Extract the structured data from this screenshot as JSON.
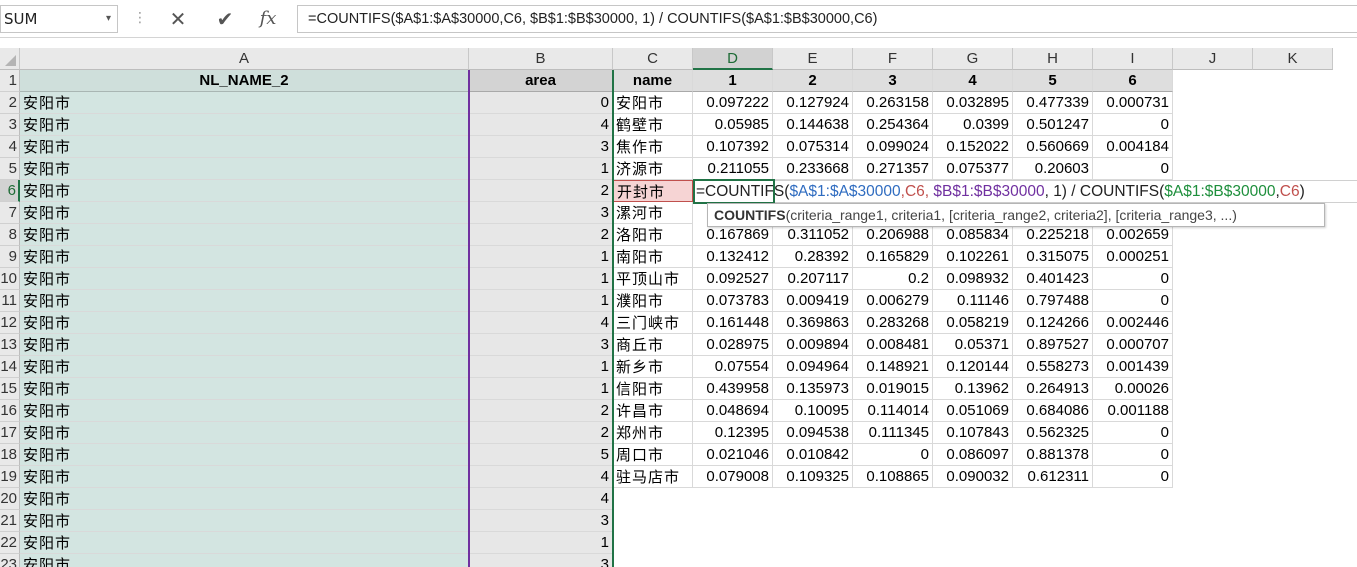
{
  "formula_bar": {
    "name_box": "SUM",
    "name_box_dropdown": "▾",
    "grip": "⋮",
    "cancel_glyph": "✕",
    "enter_glyph": "✔",
    "fx_glyph": "fx",
    "formula": "=COUNTIFS($A$1:$A$30000,C6, $B$1:$B$30000, 1) / COUNTIFS($A$1:$B$30000,C6)"
  },
  "columns": [
    "A",
    "B",
    "C",
    "D",
    "E",
    "F",
    "G",
    "H",
    "I",
    "J",
    "K"
  ],
  "active_column": "D",
  "active_row": "6",
  "row_numbers": [
    "1",
    "2",
    "3",
    "4",
    "5",
    "6",
    "7",
    "8",
    "9",
    "10",
    "11",
    "12",
    "13",
    "14",
    "15",
    "16",
    "17",
    "18",
    "19",
    "20",
    "21",
    "22",
    "23"
  ],
  "headers": {
    "A": "NL_NAME_2",
    "B": "area",
    "C": "name",
    "D": "1",
    "E": "2",
    "F": "3",
    "G": "4",
    "H": "5",
    "I": "6"
  },
  "colA_values": [
    "安阳市",
    "安阳市",
    "安阳市",
    "安阳市",
    "安阳市",
    "安阳市",
    "安阳市",
    "安阳市",
    "安阳市",
    "安阳市",
    "安阳市",
    "安阳市",
    "安阳市",
    "安阳市",
    "安阳市",
    "安阳市",
    "安阳市",
    "安阳市",
    "安阳市",
    "安阳市",
    "安阳市",
    "安阳市"
  ],
  "colB_values": [
    "0",
    "4",
    "3",
    "1",
    "2",
    "3",
    "2",
    "1",
    "1",
    "1",
    "4",
    "3",
    "1",
    "1",
    "2",
    "2",
    "5",
    "4",
    "4",
    "3",
    "1",
    "3"
  ],
  "colC_values": [
    "安阳市",
    "鹤壁市",
    "焦作市",
    "济源市",
    "开封市",
    "漯河市",
    "洛阳市",
    "南阳市",
    "平顶山市",
    "濮阳市",
    "三门峡市",
    "商丘市",
    "新乡市",
    "信阳市",
    "许昌市",
    "郑州市",
    "周口市",
    "驻马店市"
  ],
  "data_rows": [
    [
      "0.097222",
      "0.127924",
      "0.263158",
      "0.032895",
      "0.477339",
      "0.000731"
    ],
    [
      "0.05985",
      "0.144638",
      "0.254364",
      "0.0399",
      "0.501247",
      "0"
    ],
    [
      "0.107392",
      "0.075314",
      "0.099024",
      "0.152022",
      "0.560669",
      "0.004184"
    ],
    [
      "0.211055",
      "0.233668",
      "0.271357",
      "0.075377",
      "0.20603",
      "0"
    ],
    null,
    null,
    [
      "0.167869",
      "0.311052",
      "0.206988",
      "0.085834",
      "0.225218",
      "0.002659"
    ],
    [
      "0.132412",
      "0.28392",
      "0.165829",
      "0.102261",
      "0.315075",
      "0.000251"
    ],
    [
      "0.092527",
      "0.207117",
      "0.2",
      "0.098932",
      "0.401423",
      "0"
    ],
    [
      "0.073783",
      "0.009419",
      "0.006279",
      "0.11146",
      "0.797488",
      "0"
    ],
    [
      "0.161448",
      "0.369863",
      "0.283268",
      "0.058219",
      "0.124266",
      "0.002446"
    ],
    [
      "0.028975",
      "0.009894",
      "0.008481",
      "0.05371",
      "0.897527",
      "0.000707"
    ],
    [
      "0.07554",
      "0.094964",
      "0.148921",
      "0.120144",
      "0.558273",
      "0.001439"
    ],
    [
      "0.439958",
      "0.135973",
      "0.019015",
      "0.13962",
      "0.264913",
      "0.00026"
    ],
    [
      "0.048694",
      "0.10095",
      "0.114014",
      "0.051069",
      "0.684086",
      "0.001188"
    ],
    [
      "0.12395",
      "0.094538",
      "0.111345",
      "0.107843",
      "0.562325",
      "0"
    ],
    [
      "0.021046",
      "0.010842",
      "0",
      "0.086097",
      "0.881378",
      "0"
    ],
    [
      "0.079008",
      "0.109325",
      "0.108865",
      "0.090032",
      "0.612311",
      "0"
    ]
  ],
  "editing": {
    "p1": "=COUNTIFS(",
    "r1": "$A$1:$A$30000",
    "c1": ",",
    "r2": "C6",
    "c2": ", ",
    "r3": "$B$1:$B$30000",
    "p2": ", 1) / COUNTIFS(",
    "r4": "$A$1:$B$30000",
    "c3": ",",
    "r5": "C6",
    "p3": ")"
  },
  "tooltip": {
    "fn": "COUNTIFS",
    "args": "(criteria_range1, criteria1, [criteria_range2, criteria2], [criteria_range3, ...)"
  },
  "colors": {
    "accent_green": "#217346",
    "ref_blue": "#2f6cc0",
    "ref_red": "#c0504d",
    "ref_purple": "#7030a0",
    "ref_green": "#1e8f3c"
  }
}
